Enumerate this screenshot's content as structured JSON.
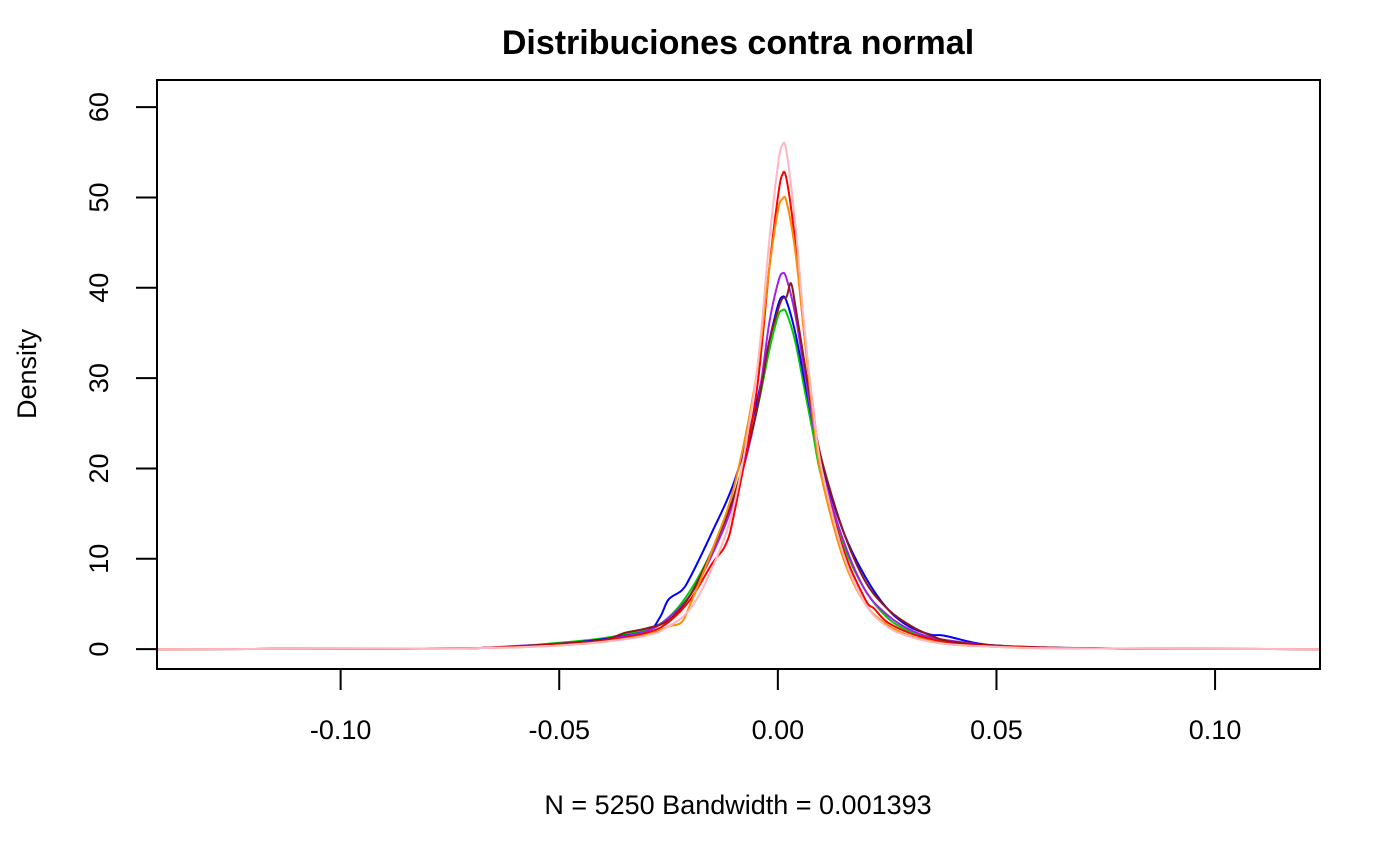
{
  "chart_data": {
    "type": "line",
    "title": "Distribuciones contra normal",
    "xlabel": "N = 5250   Bandwidth = 0.001393",
    "ylabel": "Density",
    "xlim": [
      -0.142,
      0.124
    ],
    "ylim": [
      -2.2,
      63.0
    ],
    "x_ticks": [
      -0.1,
      -0.05,
      0.0,
      0.05,
      0.1
    ],
    "x_tick_labels": [
      "-0.10",
      "-0.05",
      "0.00",
      "0.05",
      "0.10"
    ],
    "y_ticks": [
      0,
      10,
      20,
      30,
      40,
      50,
      60
    ],
    "y_tick_labels": [
      "0",
      "10",
      "20",
      "30",
      "40",
      "50",
      "60"
    ],
    "grid": false,
    "legend": "none",
    "series": [
      {
        "color": "#00cd00",
        "points": [
          [
            -0.142,
            0
          ],
          [
            -0.09,
            0.05
          ],
          [
            -0.07,
            0.1
          ],
          [
            -0.06,
            0.3
          ],
          [
            -0.05,
            0.7
          ],
          [
            -0.04,
            1.2
          ],
          [
            -0.03,
            2.2
          ],
          [
            -0.025,
            3.5
          ],
          [
            -0.02,
            6.5
          ],
          [
            -0.015,
            11
          ],
          [
            -0.01,
            17
          ],
          [
            -0.005,
            26
          ],
          [
            -0.002,
            33
          ],
          [
            0.0,
            36.8
          ],
          [
            0.001,
            37.5
          ],
          [
            0.002,
            37.2
          ],
          [
            0.004,
            34
          ],
          [
            0.006,
            29
          ],
          [
            0.008,
            24
          ],
          [
            0.01,
            19
          ],
          [
            0.015,
            11.5
          ],
          [
            0.02,
            6.5
          ],
          [
            0.025,
            3.5
          ],
          [
            0.03,
            2.0
          ],
          [
            0.035,
            1.2
          ],
          [
            0.04,
            0.7
          ],
          [
            0.05,
            0.3
          ],
          [
            0.06,
            0.15
          ],
          [
            0.08,
            0.05
          ],
          [
            0.124,
            0
          ]
        ]
      },
      {
        "color": "#0000ff",
        "points": [
          [
            -0.142,
            0
          ],
          [
            -0.09,
            0.05
          ],
          [
            -0.07,
            0.1
          ],
          [
            -0.06,
            0.3
          ],
          [
            -0.05,
            0.6
          ],
          [
            -0.04,
            1.1
          ],
          [
            -0.03,
            2.0
          ],
          [
            -0.027,
            3.5
          ],
          [
            -0.025,
            5.5
          ],
          [
            -0.022,
            6.5
          ],
          [
            -0.02,
            8
          ],
          [
            -0.015,
            13
          ],
          [
            -0.01,
            18.5
          ],
          [
            -0.005,
            27
          ],
          [
            -0.002,
            34
          ],
          [
            0.0,
            38
          ],
          [
            0.001,
            39
          ],
          [
            0.002,
            38.5
          ],
          [
            0.004,
            35
          ],
          [
            0.006,
            30
          ],
          [
            0.008,
            25
          ],
          [
            0.01,
            20.5
          ],
          [
            0.015,
            13
          ],
          [
            0.02,
            8
          ],
          [
            0.025,
            4.5
          ],
          [
            0.03,
            2.5
          ],
          [
            0.035,
            1.6
          ],
          [
            0.038,
            1.5
          ],
          [
            0.045,
            0.7
          ],
          [
            0.05,
            0.4
          ],
          [
            0.06,
            0.2
          ],
          [
            0.08,
            0.05
          ],
          [
            0.124,
            0
          ]
        ]
      },
      {
        "color": "#a020f0",
        "points": [
          [
            -0.142,
            0
          ],
          [
            -0.09,
            0.05
          ],
          [
            -0.07,
            0.1
          ],
          [
            -0.06,
            0.35
          ],
          [
            -0.05,
            0.6
          ],
          [
            -0.04,
            1.0
          ],
          [
            -0.03,
            2.0
          ],
          [
            -0.025,
            3.5
          ],
          [
            -0.02,
            6
          ],
          [
            -0.015,
            10.5
          ],
          [
            -0.01,
            16.5
          ],
          [
            -0.005,
            26
          ],
          [
            -0.002,
            36
          ],
          [
            0.0,
            40.5
          ],
          [
            0.001,
            41.6
          ],
          [
            0.002,
            41
          ],
          [
            0.004,
            37
          ],
          [
            0.006,
            31
          ],
          [
            0.008,
            25
          ],
          [
            0.01,
            20
          ],
          [
            0.015,
            12
          ],
          [
            0.02,
            6.5
          ],
          [
            0.025,
            3.8
          ],
          [
            0.03,
            2.2
          ],
          [
            0.035,
            1.3
          ],
          [
            0.04,
            0.9
          ],
          [
            0.045,
            0.6
          ],
          [
            0.05,
            0.3
          ],
          [
            0.06,
            0.15
          ],
          [
            0.08,
            0.05
          ],
          [
            0.124,
            0
          ]
        ]
      },
      {
        "color": "#8b1a1a",
        "points": [
          [
            -0.142,
            0
          ],
          [
            -0.09,
            0.05
          ],
          [
            -0.07,
            0.1
          ],
          [
            -0.06,
            0.3
          ],
          [
            -0.05,
            0.6
          ],
          [
            -0.04,
            1.0
          ],
          [
            -0.035,
            1.8
          ],
          [
            -0.03,
            2.3
          ],
          [
            -0.025,
            3.2
          ],
          [
            -0.02,
            6
          ],
          [
            -0.015,
            11
          ],
          [
            -0.01,
            17
          ],
          [
            -0.005,
            26
          ],
          [
            -0.002,
            34
          ],
          [
            0.0,
            37.5
          ],
          [
            0.001,
            38.8
          ],
          [
            0.002,
            39
          ],
          [
            0.003,
            40.5
          ],
          [
            0.004,
            38
          ],
          [
            0.006,
            32
          ],
          [
            0.008,
            26
          ],
          [
            0.01,
            21
          ],
          [
            0.015,
            13
          ],
          [
            0.02,
            7.5
          ],
          [
            0.025,
            4.5
          ],
          [
            0.03,
            2.7
          ],
          [
            0.035,
            1.5
          ],
          [
            0.04,
            0.8
          ],
          [
            0.05,
            0.4
          ],
          [
            0.06,
            0.2
          ],
          [
            0.08,
            0.05
          ],
          [
            0.124,
            0
          ]
        ]
      },
      {
        "color": "#ff0000",
        "points": [
          [
            -0.142,
            0
          ],
          [
            -0.09,
            0.05
          ],
          [
            -0.07,
            0.1
          ],
          [
            -0.06,
            0.25
          ],
          [
            -0.05,
            0.5
          ],
          [
            -0.04,
            0.9
          ],
          [
            -0.03,
            1.8
          ],
          [
            -0.025,
            3.0
          ],
          [
            -0.02,
            5.5
          ],
          [
            -0.015,
            9.5
          ],
          [
            -0.012,
            11.5
          ],
          [
            -0.01,
            15
          ],
          [
            -0.005,
            28
          ],
          [
            -0.002,
            42
          ],
          [
            0.0,
            50
          ],
          [
            0.001,
            52.5
          ],
          [
            0.002,
            52
          ],
          [
            0.004,
            45
          ],
          [
            0.006,
            35
          ],
          [
            0.008,
            27
          ],
          [
            0.01,
            20
          ],
          [
            0.015,
            11
          ],
          [
            0.02,
            5.5
          ],
          [
            0.022,
            4.5
          ],
          [
            0.025,
            3.0
          ],
          [
            0.03,
            1.8
          ],
          [
            0.035,
            1.1
          ],
          [
            0.04,
            0.6
          ],
          [
            0.05,
            0.3
          ],
          [
            0.06,
            0.15
          ],
          [
            0.08,
            0.05
          ],
          [
            0.124,
            0
          ]
        ]
      },
      {
        "color": "#ff8c00",
        "points": [
          [
            -0.142,
            0
          ],
          [
            -0.09,
            0.05
          ],
          [
            -0.07,
            0.1
          ],
          [
            -0.06,
            0.2
          ],
          [
            -0.05,
            0.4
          ],
          [
            -0.04,
            0.8
          ],
          [
            -0.03,
            1.6
          ],
          [
            -0.025,
            2.5
          ],
          [
            -0.022,
            3.0
          ],
          [
            -0.02,
            5
          ],
          [
            -0.015,
            11
          ],
          [
            -0.01,
            18
          ],
          [
            -0.005,
            30
          ],
          [
            -0.002,
            42
          ],
          [
            0.0,
            48.5
          ],
          [
            0.001,
            49.8
          ],
          [
            0.002,
            49.5
          ],
          [
            0.004,
            44
          ],
          [
            0.006,
            35
          ],
          [
            0.008,
            26
          ],
          [
            0.01,
            19
          ],
          [
            0.015,
            10
          ],
          [
            0.02,
            5
          ],
          [
            0.025,
            2.7
          ],
          [
            0.03,
            1.5
          ],
          [
            0.035,
            0.9
          ],
          [
            0.04,
            0.5
          ],
          [
            0.05,
            0.25
          ],
          [
            0.06,
            0.1
          ],
          [
            0.08,
            0.05
          ],
          [
            0.124,
            0
          ]
        ]
      },
      {
        "color": "#ffb6c1",
        "points": [
          [
            -0.142,
            0
          ],
          [
            -0.09,
            0.05
          ],
          [
            -0.07,
            0.1
          ],
          [
            -0.06,
            0.2
          ],
          [
            -0.05,
            0.4
          ],
          [
            -0.04,
            0.8
          ],
          [
            -0.03,
            1.5
          ],
          [
            -0.025,
            2.5
          ],
          [
            -0.02,
            4.5
          ],
          [
            -0.015,
            9
          ],
          [
            -0.01,
            16
          ],
          [
            -0.005,
            30
          ],
          [
            -0.002,
            45
          ],
          [
            0.0,
            53.5
          ],
          [
            0.001,
            55.8
          ],
          [
            0.002,
            55
          ],
          [
            0.004,
            47
          ],
          [
            0.006,
            36
          ],
          [
            0.008,
            27
          ],
          [
            0.01,
            20
          ],
          [
            0.015,
            10.5
          ],
          [
            0.02,
            5
          ],
          [
            0.025,
            2.5
          ],
          [
            0.03,
            1.4
          ],
          [
            0.035,
            0.8
          ],
          [
            0.04,
            0.5
          ],
          [
            0.05,
            0.25
          ],
          [
            0.06,
            0.1
          ],
          [
            0.08,
            0.05
          ],
          [
            0.124,
            0
          ]
        ]
      }
    ]
  }
}
